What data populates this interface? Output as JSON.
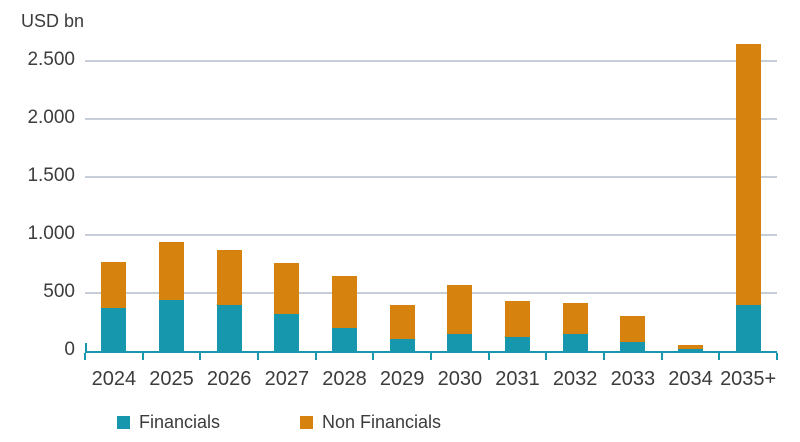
{
  "chart_data": {
    "type": "bar",
    "stacked": true,
    "title": "USD bn",
    "categories": [
      "2024",
      "2025",
      "2026",
      "2027",
      "2028",
      "2029",
      "2030",
      "2031",
      "2032",
      "2033",
      "2034",
      "2035+"
    ],
    "series": [
      {
        "name": "Financials",
        "color": "#1697ad",
        "values": [
          370,
          440,
          400,
          320,
          200,
          100,
          150,
          120,
          150,
          80,
          15,
          400
        ]
      },
      {
        "name": "Non Financials",
        "color": "#d5820f",
        "values": [
          400,
          500,
          470,
          440,
          450,
          300,
          420,
          310,
          260,
          220,
          35,
          2250
        ]
      }
    ],
    "ylim": [
      0,
      2650
    ],
    "yticks": [
      0,
      500,
      1000,
      1500,
      2000,
      2500
    ],
    "ytick_labels": [
      "0",
      "500",
      "1.000",
      "1.500",
      "2.000",
      "2.500"
    ],
    "grid": true,
    "legend_position": "bottom"
  },
  "colors": {
    "axis": "#1697ad",
    "gridline": "#c6cfd8",
    "text": "#3c3c3c"
  }
}
